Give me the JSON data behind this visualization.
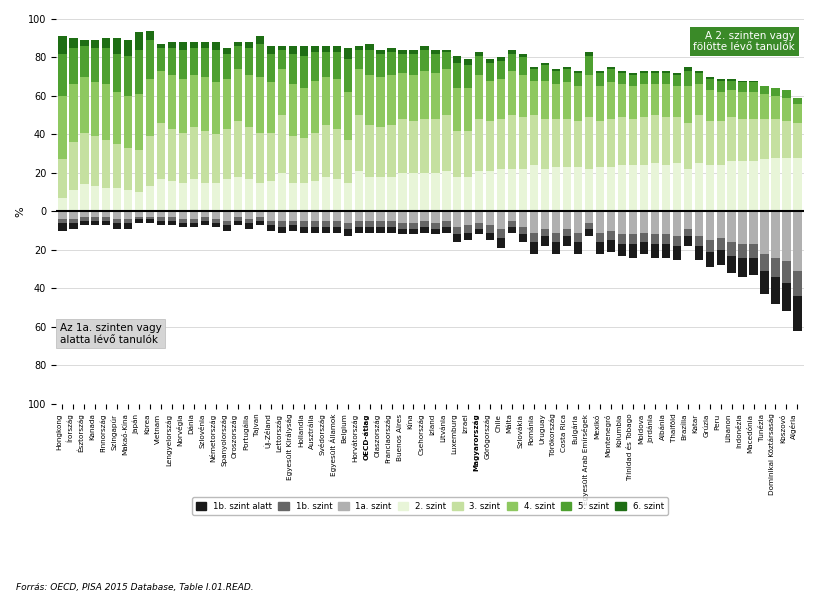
{
  "countries": [
    "Hongkong",
    "Írország",
    "Észtország",
    "Kanada",
    "Finnország",
    "Szingapúr",
    "Makaó-Kína",
    "Japán",
    "Korea",
    "Vietnam",
    "Lengyelország",
    "Norvégia",
    "Dánia",
    "Szlovénia",
    "Németország",
    "Spanyolország",
    "Oroszország",
    "Portugália",
    "Tajvan",
    "Új-Zéland",
    "Lettország",
    "Egyesült Királyság",
    "Hollandia",
    "Ausztrália",
    "Svédország",
    "Egyesült Államok",
    "Belgium",
    "Horvátország",
    "OECD-átlag",
    "Olaszország",
    "Franciaország",
    "Buenos Aires",
    "Kína",
    "Csehország",
    "Izland",
    "Litvánia",
    "Luxemburg",
    "Izrael",
    "Magyarország",
    "Görögország",
    "Chile",
    "Málta",
    "Szlovákia",
    "Románia",
    "Uruguay",
    "Törökország",
    "Costa Rica",
    "Bulgária",
    "Egyesült Arab Emírségek",
    "Mexikó",
    "Montenegró",
    "Kolumbia",
    "Trinidad és Tobago",
    "Moldova",
    "Jordánia",
    "Albánia",
    "Thaiföld",
    "Brazília",
    "Katar",
    "Grúzia",
    "Peru",
    "Libanon",
    "Indonézia",
    "Macedónia",
    "Tunézia",
    "Dominikai Köztársaság",
    "Koszovó",
    "Algéria"
  ],
  "bold_countries": [
    "OECD-átlag",
    "Magyarország"
  ],
  "legend_labels": [
    "1b. szint alatt",
    "1b. szint",
    "1a. szint",
    "2. szint",
    "3. szint",
    "4. szint",
    "5. szint",
    "6. szint"
  ],
  "legend_colors": [
    "#1a1a1a",
    "#666666",
    "#b0b0b0",
    "#e8f5d8",
    "#c5e0a0",
    "#8ec860",
    "#4ea030",
    "#1e6e14"
  ],
  "pos_data": [
    [
      7,
      20,
      33,
      22,
      9
    ],
    [
      11,
      25,
      30,
      19,
      5
    ],
    [
      14,
      27,
      29,
      16,
      3
    ],
    [
      13,
      26,
      28,
      18,
      4
    ],
    [
      12,
      25,
      29,
      19,
      5
    ],
    [
      12,
      23,
      27,
      20,
      8
    ],
    [
      11,
      22,
      27,
      21,
      8
    ],
    [
      10,
      22,
      29,
      23,
      9
    ],
    [
      13,
      26,
      30,
      20,
      5
    ],
    [
      17,
      29,
      27,
      12,
      2
    ],
    [
      16,
      27,
      28,
      14,
      3
    ],
    [
      15,
      26,
      28,
      15,
      4
    ],
    [
      17,
      27,
      27,
      14,
      3
    ],
    [
      15,
      27,
      28,
      15,
      3
    ],
    [
      15,
      25,
      27,
      17,
      4
    ],
    [
      17,
      26,
      26,
      13,
      3
    ],
    [
      18,
      29,
      27,
      12,
      2
    ],
    [
      17,
      27,
      27,
      14,
      3
    ],
    [
      15,
      26,
      29,
      17,
      4
    ],
    [
      16,
      25,
      26,
      15,
      4
    ],
    [
      20,
      30,
      24,
      10,
      2
    ],
    [
      15,
      24,
      27,
      16,
      4
    ],
    [
      15,
      23,
      26,
      17,
      5
    ],
    [
      16,
      25,
      27,
      15,
      3
    ],
    [
      18,
      27,
      25,
      13,
      3
    ],
    [
      17,
      26,
      26,
      14,
      3
    ],
    [
      15,
      22,
      25,
      17,
      6
    ],
    [
      21,
      29,
      24,
      10,
      2
    ],
    [
      18,
      27,
      26,
      13,
      3
    ],
    [
      18,
      26,
      26,
      12,
      2
    ],
    [
      18,
      27,
      26,
      12,
      2
    ],
    [
      20,
      28,
      24,
      10,
      2
    ],
    [
      20,
      27,
      24,
      11,
      2
    ],
    [
      20,
      28,
      25,
      11,
      2
    ],
    [
      20,
      28,
      24,
      10,
      2
    ],
    [
      21,
      29,
      24,
      9,
      1
    ],
    [
      18,
      24,
      22,
      13,
      4
    ],
    [
      18,
      24,
      22,
      12,
      3
    ],
    [
      21,
      27,
      23,
      10,
      2
    ],
    [
      21,
      26,
      21,
      9,
      2
    ],
    [
      22,
      26,
      21,
      9,
      2
    ],
    [
      22,
      28,
      23,
      9,
      2
    ],
    [
      22,
      27,
      22,
      9,
      2
    ],
    [
      24,
      26,
      18,
      6,
      1
    ],
    [
      22,
      26,
      20,
      8,
      1
    ],
    [
      23,
      25,
      18,
      7,
      1
    ],
    [
      23,
      25,
      19,
      7,
      1
    ],
    [
      23,
      24,
      18,
      7,
      1
    ],
    [
      22,
      27,
      22,
      10,
      2
    ],
    [
      23,
      24,
      18,
      7,
      1
    ],
    [
      23,
      25,
      19,
      7,
      1
    ],
    [
      24,
      25,
      17,
      6,
      1
    ],
    [
      24,
      24,
      17,
      6,
      1
    ],
    [
      24,
      25,
      17,
      6,
      1
    ],
    [
      25,
      25,
      16,
      6,
      1
    ],
    [
      24,
      25,
      17,
      6,
      1
    ],
    [
      25,
      24,
      16,
      6,
      1
    ],
    [
      22,
      24,
      19,
      8,
      2
    ],
    [
      25,
      25,
      16,
      6,
      1
    ],
    [
      24,
      23,
      16,
      6,
      1
    ],
    [
      24,
      23,
      15,
      6,
      1
    ],
    [
      26,
      23,
      14,
      5,
      1
    ],
    [
      26,
      22,
      14,
      5,
      1
    ],
    [
      26,
      22,
      14,
      5,
      1
    ],
    [
      27,
      21,
      13,
      4,
      0
    ],
    [
      28,
      20,
      12,
      4,
      0
    ],
    [
      28,
      19,
      12,
      4,
      0
    ],
    [
      28,
      18,
      10,
      3,
      0
    ]
  ],
  "neg_data": [
    [
      4,
      2,
      4
    ],
    [
      3,
      2,
      4
    ],
    [
      2,
      2,
      3
    ],
    [
      2,
      2,
      3
    ],
    [
      2,
      2,
      3
    ],
    [
      3,
      2,
      4
    ],
    [
      3,
      2,
      4
    ],
    [
      2,
      1,
      3
    ],
    [
      2,
      1,
      3
    ],
    [
      2,
      2,
      3
    ],
    [
      2,
      2,
      3
    ],
    [
      2,
      2,
      4
    ],
    [
      2,
      2,
      4
    ],
    [
      2,
      2,
      3
    ],
    [
      2,
      2,
      4
    ],
    [
      3,
      2,
      5
    ],
    [
      2,
      2,
      3
    ],
    [
      3,
      2,
      4
    ],
    [
      2,
      2,
      3
    ],
    [
      3,
      2,
      5
    ],
    [
      3,
      3,
      5
    ],
    [
      3,
      2,
      5
    ],
    [
      3,
      3,
      5
    ],
    [
      3,
      3,
      5
    ],
    [
      3,
      3,
      5
    ],
    [
      3,
      3,
      5
    ],
    [
      4,
      3,
      6
    ],
    [
      3,
      3,
      5
    ],
    [
      3,
      3,
      5
    ],
    [
      3,
      3,
      5
    ],
    [
      3,
      3,
      5
    ],
    [
      3,
      3,
      6
    ],
    [
      3,
      3,
      6
    ],
    [
      3,
      3,
      5
    ],
    [
      3,
      3,
      6
    ],
    [
      3,
      3,
      5
    ],
    [
      4,
      4,
      8
    ],
    [
      4,
      4,
      7
    ],
    [
      3,
      3,
      6
    ],
    [
      4,
      4,
      7
    ],
    [
      5,
      5,
      9
    ],
    [
      3,
      3,
      5
    ],
    [
      4,
      4,
      8
    ],
    [
      6,
      5,
      11
    ],
    [
      5,
      4,
      9
    ],
    [
      6,
      5,
      11
    ],
    [
      5,
      4,
      9
    ],
    [
      6,
      5,
      11
    ],
    [
      4,
      3,
      6
    ],
    [
      6,
      5,
      11
    ],
    [
      6,
      5,
      10
    ],
    [
      6,
      5,
      12
    ],
    [
      7,
      5,
      12
    ],
    [
      6,
      5,
      11
    ],
    [
      7,
      5,
      12
    ],
    [
      7,
      5,
      12
    ],
    [
      7,
      5,
      13
    ],
    [
      5,
      4,
      9
    ],
    [
      7,
      5,
      13
    ],
    [
      8,
      6,
      15
    ],
    [
      8,
      6,
      14
    ],
    [
      9,
      7,
      16
    ],
    [
      10,
      7,
      17
    ],
    [
      9,
      7,
      17
    ],
    [
      12,
      9,
      22
    ],
    [
      14,
      10,
      24
    ],
    [
      15,
      11,
      26
    ],
    [
      18,
      13,
      31
    ]
  ],
  "annotation_top": "A 2. szinten vagy\nfölötte lévő tanulók",
  "annotation_bottom": "Az 1a. szinten vagy\nalatta lévő tanulók",
  "source": "Forrás: OECD, PISA 2015 Database, Table I.01.READ.",
  "background_color": "#ffffff",
  "grid_color": "#cccccc"
}
